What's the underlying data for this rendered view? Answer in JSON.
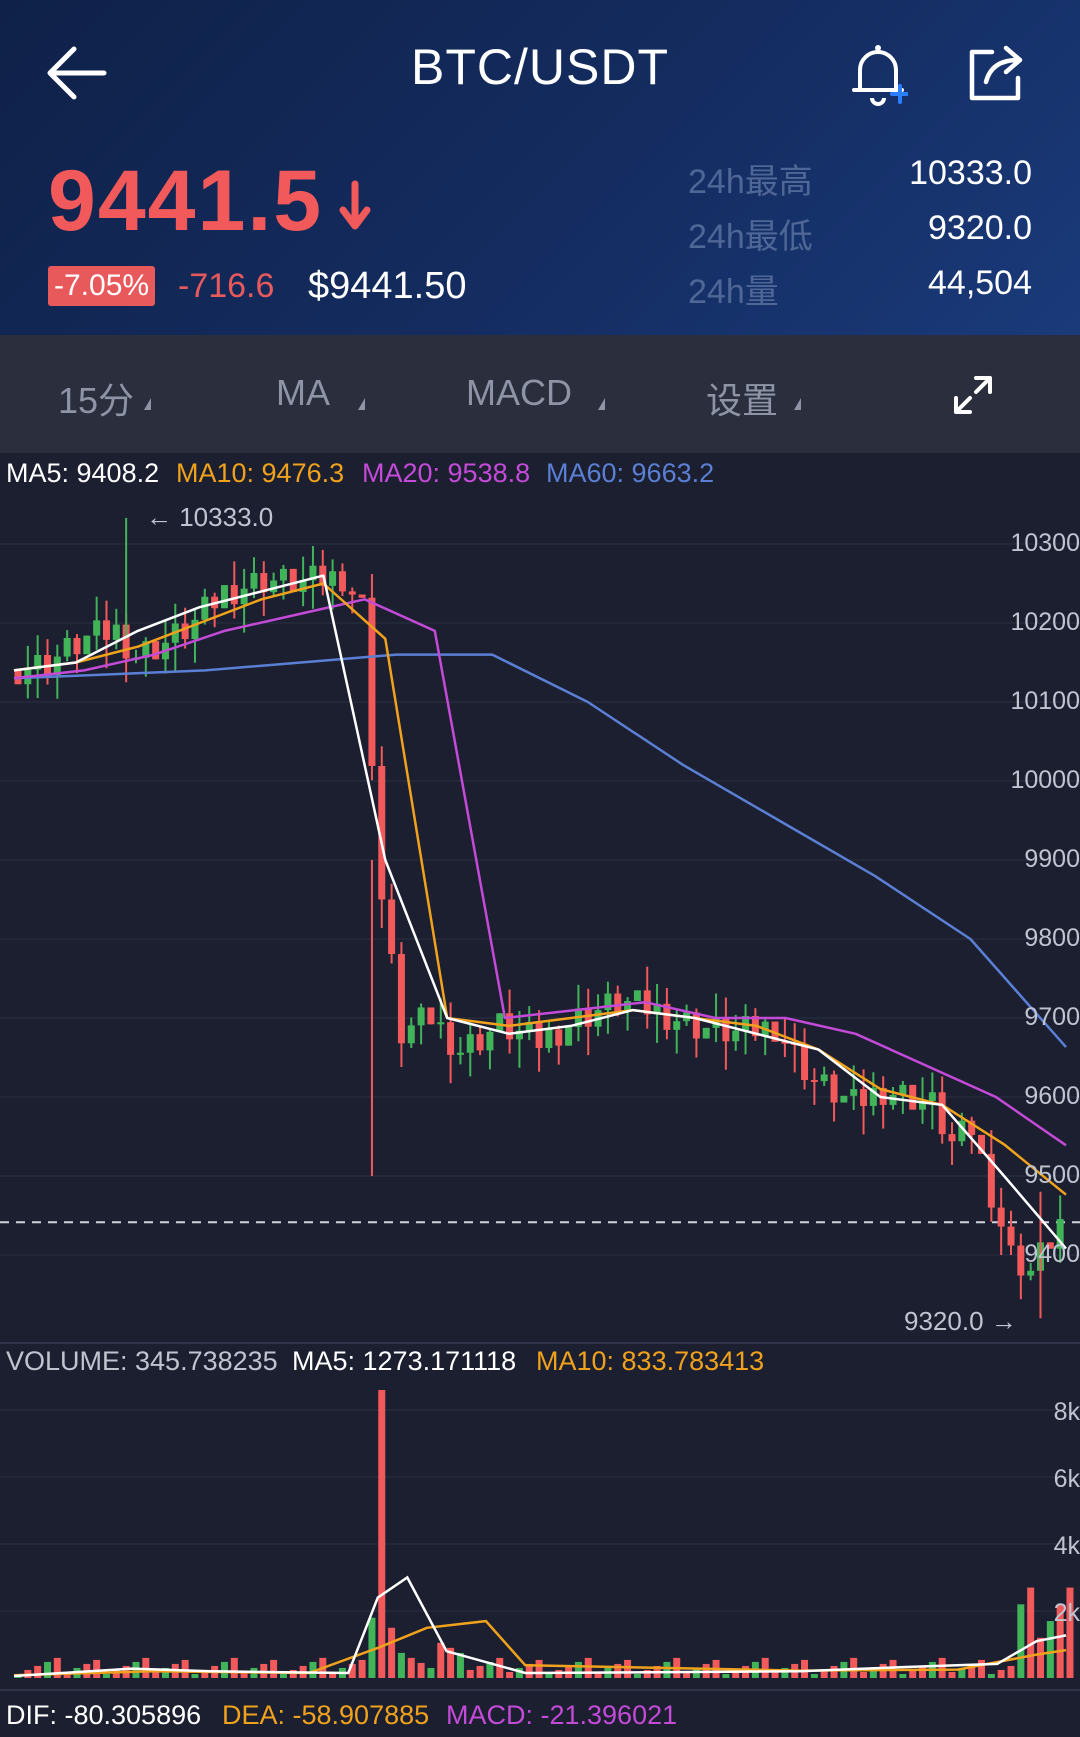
{
  "header": {
    "title": "BTC/USDT",
    "last_price": "9441.5",
    "change_pct": "-7.05%",
    "change_abs": "-716.6",
    "usd_price": "$9441.50",
    "stats": [
      {
        "label": "24h最高",
        "value": "10333.0"
      },
      {
        "label": "24h最低",
        "value": "9320.0"
      },
      {
        "label": "24h量",
        "value": "44,504"
      }
    ],
    "icons": [
      "back-arrow-icon",
      "bell-plus-icon",
      "share-icon",
      "down-arrow-icon"
    ],
    "colors": {
      "down": "#f2595a",
      "up": "#41b45a",
      "header_bg": "#142c60"
    }
  },
  "toolbar": {
    "items": [
      {
        "label": "15分"
      },
      {
        "label": "MA"
      },
      {
        "label": "MACD"
      },
      {
        "label": "设置"
      }
    ],
    "fullscreen_icon": "expand-icon"
  },
  "chart": {
    "ma_legend": {
      "ma5": "MA5: 9408.2",
      "ma10": "MA10: 9476.3",
      "ma20": "MA20: 9538.8",
      "ma60": "MA60: 9663.2"
    },
    "high_marker": "← 10333.0",
    "low_marker": "9320.0 →",
    "y_axis": [
      "10300",
      "10200",
      "10100",
      "10000",
      "9900",
      "9800",
      "9700",
      "9600",
      "9500",
      "9400"
    ],
    "volume_legend": {
      "volume": "VOLUME: 345.738235",
      "ma5": "MA5: 1273.171118",
      "ma10": "MA10: 833.783413"
    },
    "volume_axis": [
      "8k",
      "6k",
      "4k",
      "2k"
    ],
    "macd_legend": {
      "dif": "DIF: -80.305896",
      "dea": "DEA: -58.907885",
      "macd": "MACD: -21.396021"
    },
    "colors": {
      "ma5": "#ffffff",
      "ma10": "#f0a21c",
      "ma20": "#c44ad8",
      "ma60": "#5b7fd4"
    }
  },
  "chart_data": {
    "type": "candlestick",
    "interval": "15分",
    "price_range": [
      9300,
      10360
    ],
    "high": 10333.0,
    "low": 9320.0,
    "last": 9441.5,
    "close_path": [
      {
        "t": 0,
        "close": 10140
      },
      {
        "t": 4,
        "close": 10150
      },
      {
        "t": 8,
        "close": 10180
      },
      {
        "t": 11,
        "close": 10190
      },
      {
        "t": 13,
        "close": 10160
      },
      {
        "t": 16,
        "close": 10175
      },
      {
        "t": 19,
        "close": 10200
      },
      {
        "t": 22,
        "close": 10240
      },
      {
        "t": 26,
        "close": 10255
      },
      {
        "t": 30,
        "close": 10250
      },
      {
        "t": 34,
        "close": 10260
      },
      {
        "t": 36,
        "close": 10220
      },
      {
        "t": 38,
        "close": 9850
      },
      {
        "t": 40,
        "close": 9680
      },
      {
        "t": 43,
        "close": 9700
      },
      {
        "t": 46,
        "close": 9660
      },
      {
        "t": 50,
        "close": 9690
      },
      {
        "t": 54,
        "close": 9670
      },
      {
        "t": 58,
        "close": 9700
      },
      {
        "t": 62,
        "close": 9720
      },
      {
        "t": 66,
        "close": 9710
      },
      {
        "t": 70,
        "close": 9690
      },
      {
        "t": 74,
        "close": 9680
      },
      {
        "t": 78,
        "close": 9690
      },
      {
        "t": 82,
        "close": 9620
      },
      {
        "t": 86,
        "close": 9590
      },
      {
        "t": 89,
        "close": 9610
      },
      {
        "t": 92,
        "close": 9600
      },
      {
        "t": 94,
        "close": 9590
      },
      {
        "t": 96,
        "close": 9540
      },
      {
        "t": 98,
        "close": 9560
      },
      {
        "t": 100,
        "close": 9480
      },
      {
        "t": 102,
        "close": 9400
      },
      {
        "t": 104,
        "close": 9380
      },
      {
        "t": 106,
        "close": 9420
      },
      {
        "t": 107,
        "close": 9441.5
      }
    ],
    "ma5": [
      10140,
      10150,
      10190,
      10220,
      10240,
      10260,
      9900,
      9700,
      9680,
      9690,
      9710,
      9700,
      9680,
      9660,
      9600,
      9590,
      9500,
      9408.2
    ],
    "ma10": [
      10140,
      10150,
      10170,
      10200,
      10230,
      10250,
      10180,
      9700,
      9690,
      9700,
      9710,
      9700,
      9690,
      9660,
      9610,
      9590,
      9540,
      9476.3
    ],
    "ma20": [
      10130,
      10140,
      10160,
      10190,
      10210,
      10230,
      10190,
      9700,
      9710,
      9720,
      9700,
      9700,
      9680,
      9640,
      9600,
      9538.8
    ],
    "ma60": [
      10130,
      10135,
      10140,
      10150,
      10160,
      10160,
      10100,
      10020,
      9950,
      9880,
      9800,
      9663.2
    ],
    "volume_peak": 8600
  }
}
